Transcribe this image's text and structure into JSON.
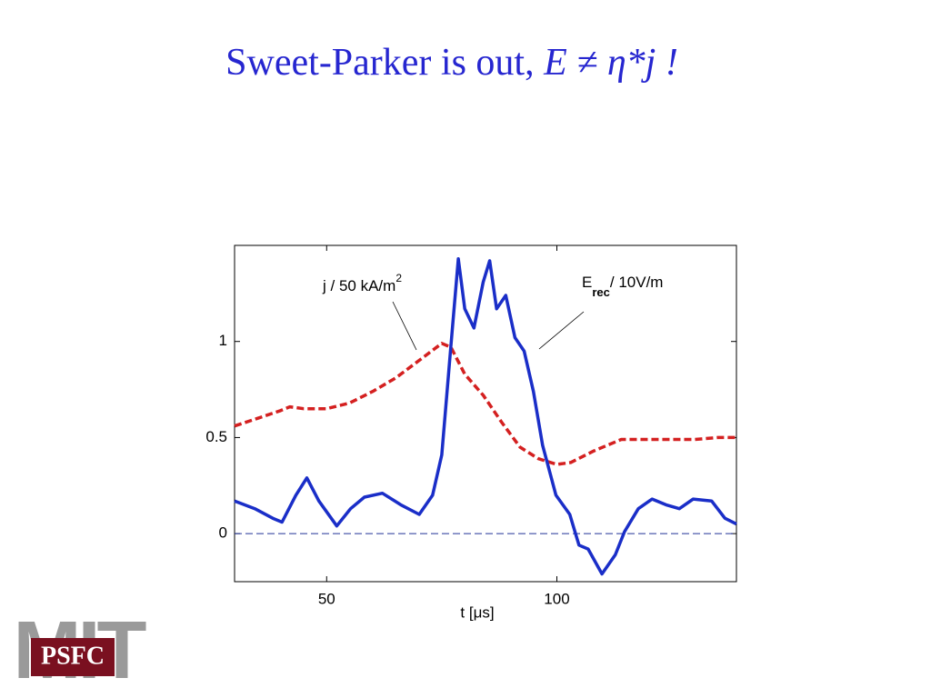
{
  "chart_data": {
    "type": "line",
    "title": "Sweet-Parker is out,",
    "title_formula": "E ≠ η*j !",
    "xlabel": "t  [μs]",
    "annotations": [
      {
        "text": "j  /  50 kA/m",
        "superscript": "2"
      },
      {
        "text": "E",
        "subscript": "rec",
        "suffix": "/ 10V/m"
      }
    ],
    "xlim": [
      30,
      139
    ],
    "ylim": [
      -0.25,
      1.5
    ],
    "xticks": [
      50,
      100
    ],
    "yticks": [
      0,
      0.5,
      1
    ],
    "grid": false,
    "hline": 0,
    "series": [
      {
        "name": "j",
        "color": "#d42020",
        "dash": true,
        "x": [
          30,
          35,
          40,
          42,
          45,
          50,
          55,
          60,
          65,
          70,
          75,
          77,
          80,
          84,
          88,
          92,
          96,
          100,
          103,
          108,
          114,
          120,
          125,
          130,
          135,
          139
        ],
        "values": [
          0.56,
          0.6,
          0.64,
          0.66,
          0.65,
          0.65,
          0.68,
          0.74,
          0.81,
          0.9,
          0.99,
          0.97,
          0.83,
          0.72,
          0.58,
          0.45,
          0.39,
          0.36,
          0.37,
          0.43,
          0.49,
          0.49,
          0.49,
          0.49,
          0.5,
          0.5
        ]
      },
      {
        "name": "E",
        "color": "#1a2ec8",
        "dash": false,
        "x": [
          30,
          34.4,
          38.3,
          40.3,
          43.3,
          45.7,
          48.3,
          52.2,
          55.2,
          58.2,
          62.1,
          66.1,
          70.1,
          73,
          75,
          77,
          78.6,
          80,
          82,
          84,
          85.4,
          86.9,
          88.9,
          90.9,
          92.9,
          94.9,
          96.9,
          99.8,
          102.8,
          104.8,
          106.8,
          109.8,
          112.7,
          114.7,
          117.7,
          120.7,
          123.7,
          126.6,
          129.6,
          133.6,
          136.5,
          139
        ],
        "values": [
          0.17,
          0.13,
          0.08,
          0.06,
          0.2,
          0.29,
          0.17,
          0.04,
          0.13,
          0.19,
          0.21,
          0.15,
          0.1,
          0.2,
          0.41,
          0.98,
          1.43,
          1.17,
          1.07,
          1.31,
          1.42,
          1.17,
          1.24,
          1.02,
          0.95,
          0.74,
          0.46,
          0.2,
          0.1,
          -0.06,
          -0.08,
          -0.21,
          -0.11,
          0.01,
          0.13,
          0.18,
          0.15,
          0.13,
          0.18,
          0.17,
          0.08,
          0.05
        ]
      }
    ]
  },
  "logo": {
    "outer": "MIT",
    "inner": "PSFC"
  }
}
